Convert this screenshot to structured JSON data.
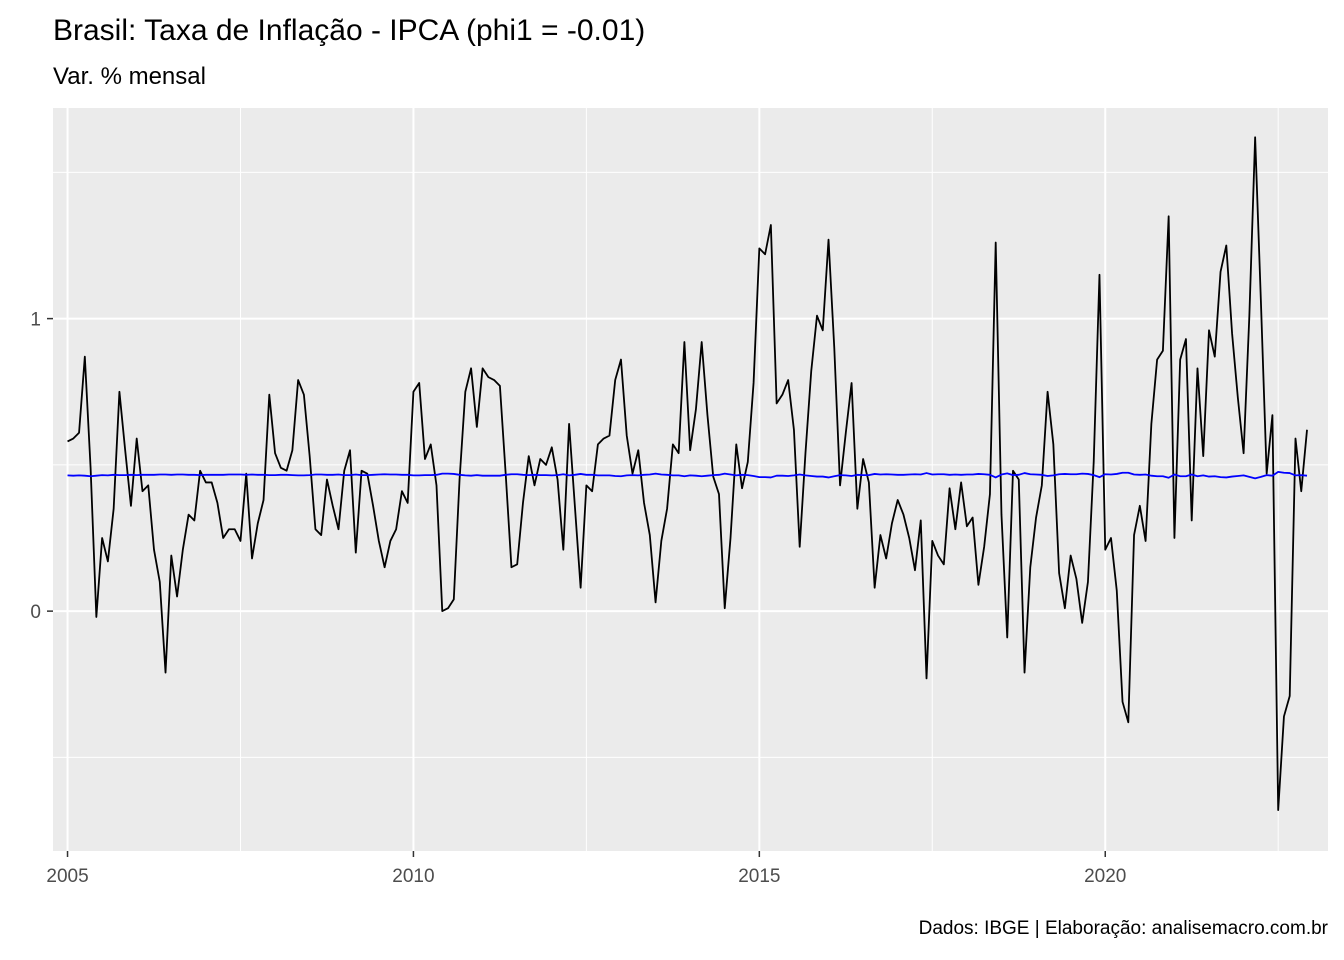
{
  "chart_data": {
    "type": "line",
    "title": "Brasil: Taxa de Inflação - IPCA (phi1 = -0.01)",
    "subtitle": "Var. % mensal",
    "caption": "Dados: IBGE | Elaboração: analisemacro.com.br",
    "xlabel": "",
    "ylabel": "",
    "x_start": "2005-01",
    "x_frequency": "monthly",
    "xlim": [
      2004.79,
      2023.22
    ],
    "ylim": [
      -0.82,
      1.72
    ],
    "x_ticks": [
      2005,
      2010,
      2015,
      2020
    ],
    "x_tick_labels": [
      "2005",
      "2010",
      "2015",
      "2020"
    ],
    "y_ticks": [
      0,
      1
    ],
    "y_tick_labels": [
      "0",
      "1"
    ],
    "grid": true,
    "legend": "none",
    "series": [
      {
        "color": "#000000",
        "values": [
          0.58,
          0.59,
          0.61,
          0.87,
          0.49,
          -0.02,
          0.25,
          0.17,
          0.35,
          0.75,
          0.55,
          0.36,
          0.59,
          0.41,
          0.43,
          0.21,
          0.1,
          -0.21,
          0.19,
          0.05,
          0.21,
          0.33,
          0.31,
          0.48,
          0.44,
          0.44,
          0.37,
          0.25,
          0.28,
          0.28,
          0.24,
          0.47,
          0.18,
          0.3,
          0.38,
          0.74,
          0.54,
          0.49,
          0.48,
          0.55,
          0.79,
          0.74,
          0.53,
          0.28,
          0.26,
          0.45,
          0.36,
          0.28,
          0.48,
          0.55,
          0.2,
          0.48,
          0.47,
          0.36,
          0.24,
          0.15,
          0.24,
          0.28,
          0.41,
          0.37,
          0.75,
          0.78,
          0.52,
          0.57,
          0.43,
          0.0,
          0.01,
          0.04,
          0.45,
          0.75,
          0.83,
          0.63,
          0.83,
          0.8,
          0.79,
          0.77,
          0.47,
          0.15,
          0.16,
          0.37,
          0.53,
          0.43,
          0.52,
          0.5,
          0.56,
          0.45,
          0.21,
          0.64,
          0.36,
          0.08,
          0.43,
          0.41,
          0.57,
          0.59,
          0.6,
          0.79,
          0.86,
          0.6,
          0.47,
          0.55,
          0.37,
          0.26,
          0.03,
          0.24,
          0.35,
          0.57,
          0.54,
          0.92,
          0.55,
          0.69,
          0.92,
          0.67,
          0.46,
          0.4,
          0.01,
          0.25,
          0.57,
          0.42,
          0.51,
          0.78,
          1.24,
          1.22,
          1.32,
          0.71,
          0.74,
          0.79,
          0.62,
          0.22,
          0.54,
          0.82,
          1.01,
          0.96,
          1.27,
          0.9,
          0.43,
          0.61,
          0.78,
          0.35,
          0.52,
          0.44,
          0.08,
          0.26,
          0.18,
          0.3,
          0.38,
          0.33,
          0.25,
          0.14,
          0.31,
          -0.23,
          0.24,
          0.19,
          0.16,
          0.42,
          0.28,
          0.44,
          0.29,
          0.32,
          0.09,
          0.22,
          0.4,
          1.26,
          0.33,
          -0.09,
          0.48,
          0.45,
          -0.21,
          0.15,
          0.32,
          0.43,
          0.75,
          0.57,
          0.13,
          0.01,
          0.19,
          0.11,
          -0.04,
          0.1,
          0.51,
          1.15,
          0.21,
          0.25,
          0.07,
          -0.31,
          -0.38,
          0.26,
          0.36,
          0.24,
          0.64,
          0.86,
          0.89,
          1.35,
          0.25,
          0.86,
          0.93,
          0.31,
          0.83,
          0.53,
          0.96,
          0.87,
          1.16,
          1.25,
          0.95,
          0.73,
          0.54,
          1.01,
          1.62,
          1.06,
          0.47,
          0.67,
          -0.68,
          -0.36,
          -0.29,
          0.59,
          0.41,
          0.62
        ]
      },
      {
        "color": "#0000ff",
        "values": [
          0.464,
          0.463,
          0.464,
          0.463,
          0.461,
          0.463,
          0.465,
          0.464,
          0.466,
          0.465,
          0.465,
          0.466,
          0.465,
          0.466,
          0.466,
          0.466,
          0.467,
          0.467,
          0.466,
          0.467,
          0.467,
          0.466,
          0.466,
          0.465,
          0.466,
          0.466,
          0.466,
          0.466,
          0.467,
          0.467,
          0.467,
          0.466,
          0.467,
          0.466,
          0.466,
          0.465,
          0.465,
          0.466,
          0.466,
          0.465,
          0.464,
          0.464,
          0.465,
          0.467,
          0.467,
          0.466,
          0.466,
          0.467,
          0.465,
          0.465,
          0.467,
          0.465,
          0.465,
          0.466,
          0.467,
          0.468,
          0.467,
          0.467,
          0.466,
          0.466,
          0.464,
          0.464,
          0.465,
          0.465,
          0.466,
          0.47,
          0.47,
          0.469,
          0.466,
          0.464,
          0.463,
          0.465,
          0.463,
          0.463,
          0.463,
          0.463,
          0.466,
          0.468,
          0.468,
          0.466,
          0.465,
          0.466,
          0.465,
          0.465,
          0.464,
          0.465,
          0.468,
          0.464,
          0.466,
          0.469,
          0.466,
          0.466,
          0.464,
          0.464,
          0.464,
          0.462,
          0.461,
          0.464,
          0.465,
          0.464,
          0.466,
          0.467,
          0.47,
          0.467,
          0.466,
          0.464,
          0.464,
          0.461,
          0.464,
          0.463,
          0.461,
          0.463,
          0.465,
          0.466,
          0.47,
          0.467,
          0.464,
          0.466,
          0.465,
          0.462,
          0.458,
          0.458,
          0.457,
          0.463,
          0.463,
          0.462,
          0.464,
          0.467,
          0.464,
          0.462,
          0.46,
          0.46,
          0.457,
          0.461,
          0.465,
          0.464,
          0.462,
          0.466,
          0.465,
          0.465,
          0.469,
          0.467,
          0.468,
          0.467,
          0.466,
          0.466,
          0.467,
          0.468,
          0.467,
          0.472,
          0.467,
          0.468,
          0.468,
          0.466,
          0.467,
          0.466,
          0.467,
          0.467,
          0.469,
          0.468,
          0.466,
          0.457,
          0.467,
          0.471,
          0.465,
          0.466,
          0.472,
          0.468,
          0.467,
          0.466,
          0.462,
          0.464,
          0.468,
          0.469,
          0.468,
          0.468,
          0.47,
          0.469,
          0.465,
          0.458,
          0.468,
          0.467,
          0.469,
          0.473,
          0.473,
          0.467,
          0.466,
          0.467,
          0.463,
          0.461,
          0.461,
          0.456,
          0.467,
          0.461,
          0.461,
          0.467,
          0.461,
          0.464,
          0.46,
          0.461,
          0.458,
          0.457,
          0.46,
          0.462,
          0.464,
          0.459,
          0.454,
          0.459,
          0.465,
          0.463,
          0.476,
          0.473,
          0.472,
          0.464,
          0.465,
          0.463
        ]
      }
    ]
  }
}
